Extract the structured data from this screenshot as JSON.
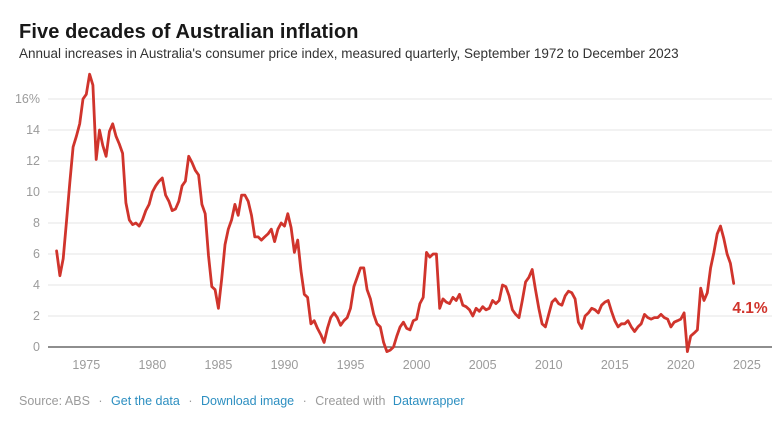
{
  "header": {
    "title": "Five decades of Australian inflation",
    "subtitle": "Annual increases in Australia's consumer price index, measured quarterly, September 1972 to December 2023"
  },
  "chart_data": {
    "type": "line",
    "title": "Five decades of Australian inflation",
    "series_name": "Annual change in Australian consumer price index (%)",
    "frequency": "quarterly",
    "start_quarter": "Sep 1972",
    "end_quarter": "Dec 2023",
    "start_year_fraction": 1972.75,
    "step_years": 0.25,
    "values": [
      6.2,
      4.6,
      5.7,
      8.1,
      10.6,
      12.9,
      13.6,
      14.4,
      16.0,
      16.3,
      17.6,
      16.9,
      12.1,
      14.0,
      13.0,
      12.3,
      13.9,
      14.4,
      13.6,
      13.1,
      12.5,
      9.3,
      8.2,
      7.9,
      8.0,
      7.8,
      8.2,
      8.8,
      9.2,
      10.0,
      10.4,
      10.7,
      10.9,
      9.8,
      9.4,
      8.8,
      8.9,
      9.4,
      10.4,
      10.7,
      12.3,
      11.9,
      11.4,
      11.1,
      9.2,
      8.6,
      5.9,
      3.9,
      3.7,
      2.5,
      4.4,
      6.6,
      7.6,
      8.2,
      9.2,
      8.5,
      9.8,
      9.8,
      9.4,
      8.5,
      7.1,
      7.1,
      6.9,
      7.1,
      7.3,
      7.6,
      6.8,
      7.6,
      8.0,
      7.8,
      8.6,
      7.7,
      6.1,
      6.9,
      4.9,
      3.4,
      3.2,
      1.5,
      1.7,
      1.2,
      0.8,
      0.3,
      1.2,
      1.9,
      2.2,
      1.9,
      1.4,
      1.7,
      1.9,
      2.5,
      3.9,
      4.5,
      5.1,
      5.1,
      3.7,
      3.1,
      2.1,
      1.5,
      1.3,
      0.3,
      -0.3,
      -0.2,
      0.0,
      0.7,
      1.3,
      1.6,
      1.2,
      1.1,
      1.7,
      1.8,
      2.8,
      3.2,
      6.1,
      5.8,
      6.0,
      6.0,
      2.5,
      3.1,
      2.9,
      2.8,
      3.2,
      3.0,
      3.4,
      2.7,
      2.6,
      2.4,
      2.0,
      2.5,
      2.3,
      2.6,
      2.4,
      2.5,
      3.0,
      2.8,
      3.0,
      4.0,
      3.9,
      3.3,
      2.4,
      2.1,
      1.9,
      3.0,
      4.2,
      4.5,
      5.0,
      3.7,
      2.5,
      1.5,
      1.3,
      2.1,
      2.9,
      3.1,
      2.8,
      2.7,
      3.3,
      3.6,
      3.5,
      3.1,
      1.6,
      1.2,
      2.0,
      2.2,
      2.5,
      2.4,
      2.2,
      2.7,
      2.9,
      3.0,
      2.3,
      1.7,
      1.3,
      1.5,
      1.5,
      1.7,
      1.3,
      1.0,
      1.3,
      1.5,
      2.1,
      1.9,
      1.8,
      1.9,
      1.9,
      2.1,
      1.9,
      1.8,
      1.3,
      1.6,
      1.7,
      1.8,
      2.2,
      -0.3,
      0.7,
      0.9,
      1.1,
      3.8,
      3.0,
      3.5,
      5.1,
      6.1,
      7.3,
      7.8,
      7.0,
      6.0,
      5.4,
      4.1
    ],
    "x_ticks": [
      1975,
      1980,
      1985,
      1990,
      1995,
      2000,
      2005,
      2010,
      2015,
      2020,
      2025
    ],
    "y_ticks": [
      0,
      2,
      4,
      6,
      8,
      10,
      12,
      14,
      16
    ],
    "y_top_tick_label": "16%",
    "x_range": [
      1972.1,
      2026.9
    ],
    "ylim": [
      0,
      16
    ],
    "grid": "horizontal",
    "legend": "none",
    "line_color": "#d0342c",
    "annotation": {
      "text": "4.1%",
      "value": 4.1,
      "quarter": "Dec 2023",
      "color": "#d0342c"
    }
  },
  "footer": {
    "source_label": "Source:",
    "source": "ABS",
    "separator": "·",
    "link_get_data": "Get the data",
    "link_download": "Download image",
    "created_with": "Created with",
    "link_datawrapper": "Datawrapper"
  },
  "colors": {
    "line": "#d0342c",
    "annotation": "#d0342c",
    "gridline": "#e6e6e6",
    "zero_line": "#1d1d1d",
    "axis_label": "#9b9b9b",
    "link": "#2d8fc1",
    "title": "#181818",
    "subtitle": "#333333",
    "background": "#ffffff"
  }
}
